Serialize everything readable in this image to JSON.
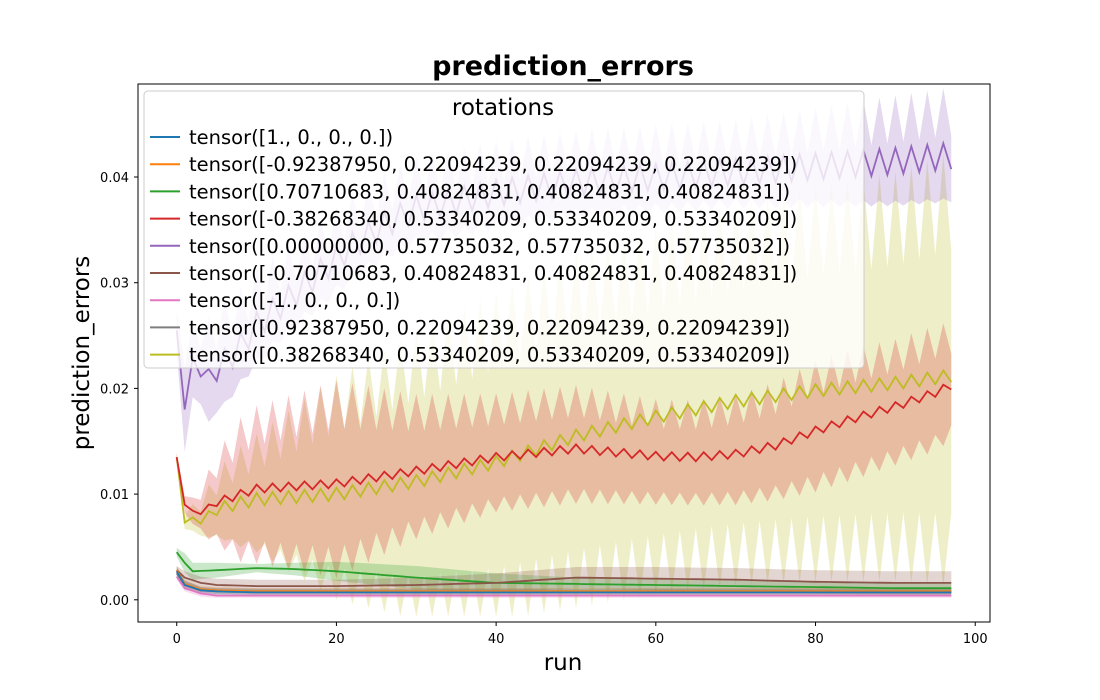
{
  "chart_data": {
    "type": "line",
    "title": "prediction_errors",
    "xlabel": "run",
    "ylabel": "prediction_errors",
    "xlim": [
      -4.85,
      101.85
    ],
    "ylim": [
      -0.0021,
      0.0488
    ],
    "xticks": [
      0,
      20,
      40,
      60,
      80,
      100
    ],
    "yticks": [
      0.0,
      0.01,
      0.02,
      0.03,
      0.04
    ],
    "ytick_labels": [
      "0.00",
      "0.01",
      "0.02",
      "0.03",
      "0.04"
    ],
    "grid": false,
    "legend": {
      "title": "rotations",
      "placement": "upper-left"
    },
    "series": [
      {
        "name": "tensor([1., 0., 0., 0.])",
        "color": "#1f77b4",
        "x": [
          0,
          1,
          3,
          5,
          10,
          20,
          40,
          60,
          80,
          97
        ],
        "y": [
          0.0027,
          0.0014,
          0.0009,
          0.0008,
          0.0007,
          0.0007,
          0.0007,
          0.0007,
          0.0007,
          0.0007
        ],
        "band": [
          0.0004,
          0.0004,
          0.0003,
          0.0003,
          0.0003,
          0.0003,
          0.0003,
          0.0003,
          0.0003,
          0.0003
        ],
        "zigzag": 0
      },
      {
        "name": "tensor([-0.92387950,  0.22094239,  0.22094239,  0.22094239])",
        "color": "#ff7f0e",
        "x": [
          0,
          1,
          3,
          5,
          10,
          20,
          40,
          60,
          80,
          97
        ],
        "y": [
          0.0028,
          0.0015,
          0.001,
          0.0009,
          0.0008,
          0.0008,
          0.0008,
          0.0008,
          0.0008,
          0.0008
        ],
        "band": [
          0.0004,
          0.0004,
          0.0003,
          0.0003,
          0.0003,
          0.0003,
          0.0003,
          0.0003,
          0.0003,
          0.0003
        ],
        "zigzag": 0
      },
      {
        "name": "tensor([0.70710683, 0.40824831, 0.40824831, 0.40824831])",
        "color": "#2ca02c",
        "x": [
          0,
          1,
          2,
          5,
          10,
          15,
          20,
          30,
          40,
          50,
          60,
          70,
          80,
          90,
          97
        ],
        "y": [
          0.0045,
          0.0035,
          0.0027,
          0.0028,
          0.003,
          0.0029,
          0.0027,
          0.0021,
          0.0016,
          0.0015,
          0.0014,
          0.0013,
          0.0012,
          0.0011,
          0.0011
        ],
        "band": [
          0.0004,
          0.0009,
          0.0008,
          0.0007,
          0.0004,
          0.0006,
          0.0009,
          0.0011,
          0.0009,
          0.0006,
          0.0005,
          0.0005,
          0.0005,
          0.0005,
          0.0005
        ],
        "zigzag": 0
      },
      {
        "name": "tensor([-0.38268340,  0.53340209,  0.53340209,  0.53340209])",
        "color": "#d62728",
        "x": [
          0,
          1,
          2,
          3,
          5,
          8,
          10,
          20,
          30,
          40,
          50,
          60,
          65,
          70,
          75,
          80,
          85,
          90,
          95,
          97
        ],
        "y": [
          0.0135,
          0.009,
          0.0083,
          0.0083,
          0.0092,
          0.01,
          0.0105,
          0.011,
          0.0122,
          0.0135,
          0.0143,
          0.0136,
          0.0135,
          0.0138,
          0.0146,
          0.016,
          0.0172,
          0.0183,
          0.0196,
          0.0203
        ],
        "band": [
          0.0004,
          0.0008,
          0.001,
          0.0018,
          0.0035,
          0.0055,
          0.006,
          0.0075,
          0.0055,
          0.0045,
          0.0045,
          0.004,
          0.004,
          0.0042,
          0.0045,
          0.005,
          0.005,
          0.0048,
          0.0048,
          0.0045
        ],
        "zigzag": 0.0008
      },
      {
        "name": "tensor([0.00000000, 0.57735032, 0.57735032, 0.57735032])",
        "color": "#9467bd",
        "x": [
          0,
          1,
          2,
          4,
          6,
          8,
          10,
          14,
          18,
          22,
          26,
          30,
          40,
          50,
          60,
          70,
          80,
          90,
          97
        ],
        "y": [
          0.0255,
          0.018,
          0.0225,
          0.021,
          0.0225,
          0.024,
          0.026,
          0.0285,
          0.031,
          0.0335,
          0.0355,
          0.037,
          0.0385,
          0.0395,
          0.04,
          0.0405,
          0.041,
          0.0415,
          0.042
        ],
        "band": [
          0.002,
          0.004,
          0.003,
          0.004,
          0.004,
          0.0035,
          0.0035,
          0.003,
          0.003,
          0.003,
          0.003,
          0.003,
          0.003,
          0.003,
          0.003,
          0.003,
          0.0035,
          0.004,
          0.0042
        ],
        "zigzag": 0.0025
      },
      {
        "name": "tensor([-0.70710683,  0.40824831,  0.40824831,  0.40824831])",
        "color": "#8c564b",
        "x": [
          0,
          1,
          3,
          5,
          10,
          20,
          30,
          40,
          50,
          60,
          70,
          80,
          90,
          97
        ],
        "y": [
          0.0028,
          0.0021,
          0.0016,
          0.0014,
          0.0013,
          0.0013,
          0.0014,
          0.0016,
          0.0021,
          0.002,
          0.0019,
          0.0017,
          0.0016,
          0.0016
        ],
        "band": [
          0.0004,
          0.0006,
          0.0006,
          0.0006,
          0.0006,
          0.0006,
          0.0007,
          0.0009,
          0.001,
          0.0011,
          0.0011,
          0.0011,
          0.0011,
          0.0011
        ],
        "zigzag": 0
      },
      {
        "name": "tensor([-1.,  0.,  0.,  0.])",
        "color": "#e377c2",
        "x": [
          0,
          1,
          3,
          5,
          10,
          20,
          40,
          60,
          80,
          97
        ],
        "y": [
          0.0022,
          0.0011,
          0.0006,
          0.0004,
          0.0004,
          0.0004,
          0.0004,
          0.0004,
          0.0004,
          0.0004
        ],
        "band": [
          0.0003,
          0.0003,
          0.0003,
          0.0002,
          0.0002,
          0.0002,
          0.0002,
          0.0002,
          0.0002,
          0.0002
        ],
        "zigzag": 0
      },
      {
        "name": "tensor([0.92387950, 0.22094239, 0.22094239, 0.22094239])",
        "color": "#7f7f7f",
        "x": [
          0,
          1,
          3,
          5,
          10,
          20,
          40,
          60,
          80,
          97
        ],
        "y": [
          0.0025,
          0.0014,
          0.0009,
          0.0008,
          0.0008,
          0.0008,
          0.0008,
          0.0008,
          0.0008,
          0.0008
        ],
        "band": [
          0.0004,
          0.0004,
          0.0003,
          0.0003,
          0.0003,
          0.0003,
          0.0003,
          0.0003,
          0.0003,
          0.0003
        ],
        "zigzag": 0
      },
      {
        "name": "tensor([0.38268340, 0.53340209, 0.53340209, 0.53340209])",
        "color": "#bcbd22",
        "x": [
          0,
          1,
          2,
          3,
          5,
          7,
          10,
          20,
          30,
          40,
          50,
          60,
          70,
          80,
          90,
          97
        ],
        "y": [
          0.0135,
          0.0073,
          0.0076,
          0.0075,
          0.0085,
          0.009,
          0.0095,
          0.01,
          0.0112,
          0.013,
          0.0155,
          0.0173,
          0.0188,
          0.0198,
          0.0205,
          0.0212
        ],
        "band": [
          0.0004,
          0.0006,
          0.001,
          0.0015,
          0.0025,
          0.0035,
          0.0045,
          0.0085,
          0.011,
          0.0125,
          0.0135,
          0.014,
          0.0145,
          0.015,
          0.0155,
          0.0165
        ],
        "zigzag": 0.0012
      }
    ]
  }
}
